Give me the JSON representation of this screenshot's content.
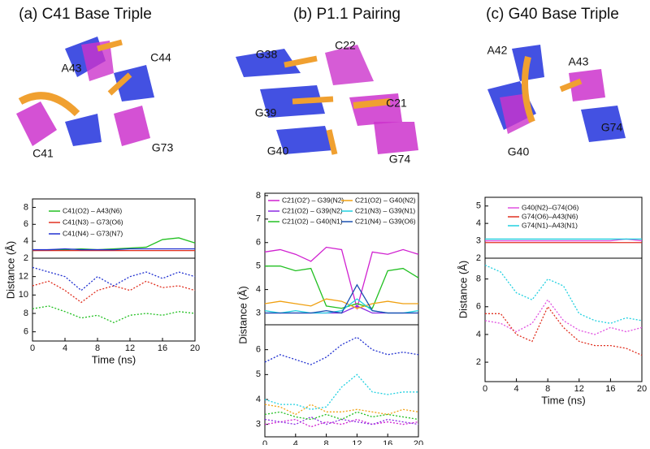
{
  "chart_data": [
    {
      "type": "line",
      "title": "(a) C41 Base Triple",
      "structure_labels": [
        "A43",
        "C44",
        "C41",
        "G73"
      ],
      "ylabel": "Distance (Å)",
      "xlabel": "Time (ns)",
      "x": [
        0,
        2,
        4,
        6,
        8,
        10,
        12,
        14,
        16,
        18,
        20
      ],
      "xlim": [
        0,
        20
      ],
      "xticks": [
        0,
        4,
        8,
        12,
        16,
        20
      ],
      "panels": [
        {
          "ylim": [
            2,
            9
          ],
          "yticks": [
            2,
            4,
            6,
            8
          ],
          "style": "solid",
          "series": [
            {
              "name": "C41(O2) – A43(N6)",
              "color": "#22c022",
              "values": [
                2.9,
                3,
                3,
                3.1,
                3,
                3.1,
                3.2,
                3.3,
                4.2,
                4.4,
                3.8
              ]
            },
            {
              "name": "C41(N3) – G73(O6)",
              "color": "#e03020",
              "values": [
                2.9,
                2.9,
                2.9,
                2.9,
                2.9,
                2.9,
                2.9,
                2.9,
                2.9,
                2.9,
                2.9
              ]
            },
            {
              "name": "C41(N4) – G73(N7)",
              "color": "#2030d0",
              "values": [
                3,
                3,
                3.1,
                3,
                3,
                3,
                3.1,
                3.1,
                3.1,
                3.1,
                3.1
              ]
            }
          ]
        },
        {
          "ylim": [
            5,
            14
          ],
          "yticks": [
            6,
            8,
            10,
            12
          ],
          "style": "dotted",
          "series": [
            {
              "color": "#22c022",
              "values": [
                8.5,
                8.8,
                8.2,
                7.5,
                7.8,
                7,
                7.8,
                8,
                7.8,
                8.2,
                8
              ]
            },
            {
              "color": "#e03020",
              "values": [
                11,
                11.5,
                10.5,
                9.2,
                10.5,
                11,
                10.5,
                11.5,
                10.8,
                11,
                10.5
              ]
            },
            {
              "color": "#2030d0",
              "values": [
                13,
                12.5,
                12,
                10.5,
                12,
                11,
                12,
                12.5,
                11.8,
                12.5,
                12
              ]
            }
          ]
        }
      ]
    },
    {
      "type": "line",
      "title": "(b) P1.1 Pairing",
      "structure_labels": [
        "G38",
        "C22",
        "C21",
        "G39",
        "G40",
        "G74"
      ],
      "ylabel": "Distance (Å)",
      "xlabel": "Time (ns)",
      "x": [
        0,
        2,
        4,
        6,
        8,
        10,
        12,
        14,
        16,
        18,
        20
      ],
      "xlim": [
        0,
        20
      ],
      "xticks": [
        0,
        4,
        8,
        12,
        16,
        20
      ],
      "panels": [
        {
          "ylim": [
            2.5,
            8.1
          ],
          "yticks": [
            3,
            4,
            5,
            6,
            7,
            8
          ],
          "style": "solid",
          "series": [
            {
              "name": "C21(O2') – G39(N2)",
              "color": "#d020d0",
              "values": [
                5.6,
                5.7,
                5.5,
                5.2,
                5.8,
                5.7,
                3.2,
                5.6,
                5.5,
                5.7,
                5.5
              ]
            },
            {
              "name": "C21(O2) – G39(N2)",
              "color": "#8a2be2",
              "values": [
                3,
                3,
                3,
                3,
                3,
                3,
                3.3,
                3,
                3,
                3,
                3
              ]
            },
            {
              "name": "C21(O2) – G40(N1)",
              "color": "#22c022",
              "values": [
                5,
                5,
                4.8,
                4.9,
                3.3,
                3.2,
                3.4,
                3.2,
                4.8,
                4.9,
                4.5
              ]
            },
            {
              "name": "C21(O2) – G40(N2)",
              "color": "#f0a010",
              "values": [
                3.4,
                3.5,
                3.4,
                3.3,
                3.6,
                3.5,
                3.2,
                3.4,
                3.5,
                3.4,
                3.4
              ]
            },
            {
              "name": "C21(N3) – G39(N1)",
              "color": "#20d0e0",
              "values": [
                3.1,
                3,
                3.1,
                3,
                3,
                3.1,
                3.6,
                3.1,
                3,
                3,
                3.1
              ]
            },
            {
              "name": "C21(N4) – G39(O6)",
              "color": "#1a50b0",
              "values": [
                3,
                3,
                3,
                3,
                3.1,
                3,
                4.2,
                3.1,
                3,
                3,
                3
              ]
            }
          ]
        },
        {
          "ylim": [
            2.5,
            7
          ],
          "yticks": [
            3,
            4,
            5,
            6
          ],
          "style": "dotted",
          "series": [
            {
              "color": "#d020d0",
              "values": [
                3,
                3.1,
                3.2,
                2.9,
                3.1,
                3,
                3.2,
                3,
                3.1,
                3,
                3.1
              ]
            },
            {
              "color": "#8a2be2",
              "values": [
                3.2,
                3.1,
                3,
                3.3,
                3,
                3.2,
                3.1,
                3,
                3.2,
                3.1,
                3
              ]
            },
            {
              "color": "#22c022",
              "values": [
                3.4,
                3.5,
                3.3,
                3.2,
                3.4,
                3.2,
                3.5,
                3.3,
                3.4,
                3.3,
                3.2
              ]
            },
            {
              "color": "#f0a010",
              "values": [
                3.8,
                3.7,
                3.4,
                3.8,
                3.5,
                3.5,
                3.6,
                3.5,
                3.4,
                3.6,
                3.5
              ]
            },
            {
              "color": "#20d0e0",
              "values": [
                4,
                3.8,
                3.8,
                3.6,
                3.7,
                4.5,
                5,
                4.3,
                4.2,
                4.3,
                4.3
              ]
            },
            {
              "color": "#2030d0",
              "values": [
                5.5,
                5.8,
                5.6,
                5.4,
                5.7,
                6.2,
                6.5,
                6,
                5.8,
                5.9,
                5.8
              ]
            }
          ]
        }
      ]
    },
    {
      "type": "line",
      "title": "(c) G40 Base Triple",
      "structure_labels": [
        "A42",
        "A43",
        "G74",
        "G40"
      ],
      "ylabel": "Distance (Å)",
      "xlabel": "Time (ns)",
      "x": [
        0,
        2,
        4,
        6,
        8,
        10,
        12,
        14,
        16,
        18,
        20
      ],
      "xlim": [
        0,
        20
      ],
      "xticks": [
        0,
        4,
        8,
        12,
        16,
        20
      ],
      "panels": [
        {
          "ylim": [
            2,
            5.5
          ],
          "yticks": [
            2,
            3,
            4,
            5
          ],
          "style": "solid",
          "series": [
            {
              "name": "G40(N2)–G74(O6)",
              "color": "#e050e0",
              "values": [
                3,
                3,
                3,
                3,
                3,
                3,
                3,
                3,
                3,
                3.1,
                3
              ]
            },
            {
              "name": "G74(O6)–A43(N6)",
              "color": "#e03020",
              "values": [
                2.9,
                2.9,
                2.9,
                2.9,
                2.9,
                2.9,
                2.9,
                2.9,
                2.9,
                2.9,
                2.9
              ]
            },
            {
              "name": "G74(N1)–A43(N1)",
              "color": "#20d0e0",
              "values": [
                3.1,
                3.1,
                3.1,
                3.1,
                3.1,
                3.1,
                3.1,
                3.1,
                3.1,
                3.1,
                3.1
              ]
            }
          ]
        },
        {
          "ylim": [
            0.6,
            9.5
          ],
          "yticks": [
            2,
            4,
            6,
            8
          ],
          "style": "dotted",
          "series": [
            {
              "color": "#e050e0",
              "values": [
                5,
                4.8,
                4.2,
                4.8,
                6.5,
                5,
                4.3,
                4,
                4.5,
                4.2,
                4.5
              ]
            },
            {
              "color": "#e03020",
              "values": [
                5.5,
                5.5,
                4,
                3.5,
                6,
                4.5,
                3.5,
                3.2,
                3.2,
                3,
                2.5
              ]
            },
            {
              "color": "#20d0e0",
              "values": [
                9,
                8.5,
                7,
                6.5,
                8,
                7.5,
                5.5,
                5,
                4.8,
                5.2,
                5
              ]
            }
          ]
        }
      ]
    }
  ]
}
